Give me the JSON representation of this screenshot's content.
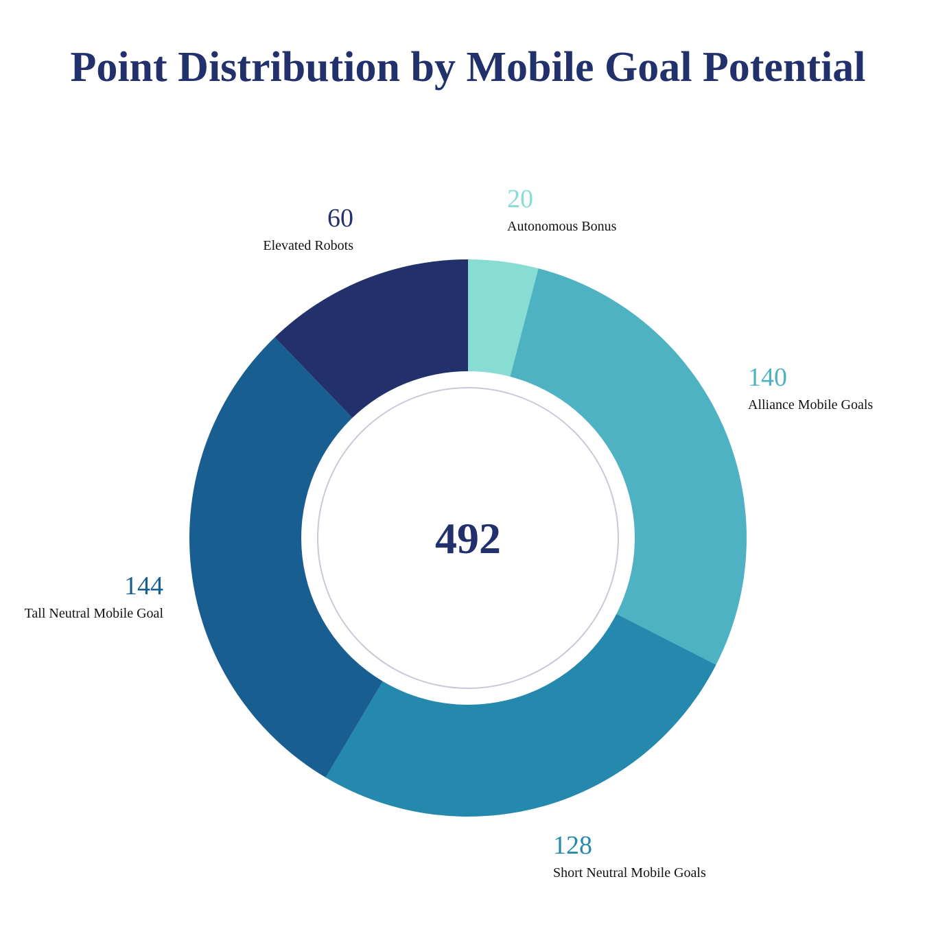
{
  "chart_data": {
    "type": "pie",
    "title": "Point Distribution by Mobile Goal Potential",
    "center_total": "492",
    "slices": [
      {
        "name": "Autonomous Bonus",
        "value": 20,
        "color": "#87ddd4"
      },
      {
        "name": "Alliance Mobile Goals",
        "value": 140,
        "color": "#4fb2c2"
      },
      {
        "name": "Short Neutral Mobile Goals",
        "value": 128,
        "color": "#2589ad"
      },
      {
        "name": "Tall Neutral Mobile Goal",
        "value": 144,
        "color": "#195e91"
      },
      {
        "name": "Elevated Robots",
        "value": 60,
        "color": "#22316c"
      }
    ],
    "legend": "none",
    "grid": false
  },
  "colors": {
    "title": "#22316c",
    "center_text": "#22316c",
    "inner_ring": "#cbc7d8"
  }
}
